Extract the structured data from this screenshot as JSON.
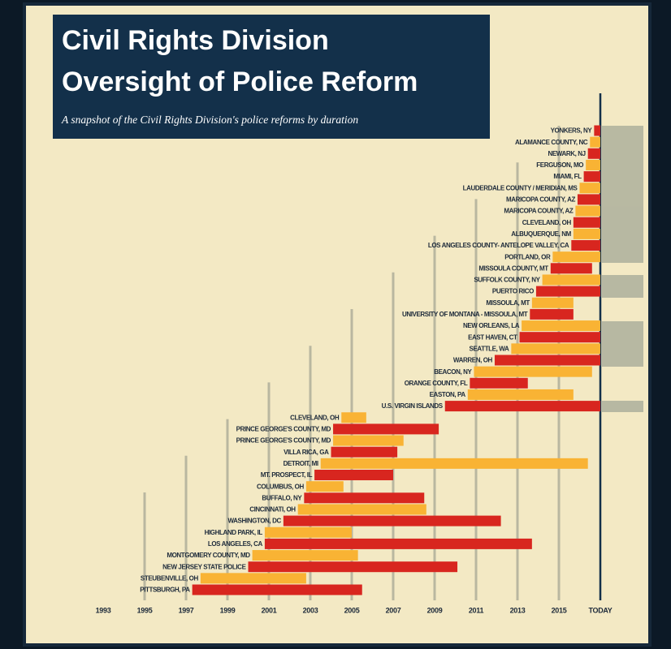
{
  "chart_data": {
    "type": "timeline",
    "title": "Civil Rights Division",
    "title_line2": "Oversight of Police Reform",
    "subtitle": "A snapshot of the Civil Rights Division's police reforms by duration",
    "categories": [
      "YONKERS, NY",
      "ALAMANCE COUNTY, NC",
      "NEWARK, NJ",
      "FERGUSON, MO",
      "MIAMI, FL",
      "LAUDERDALE COUNTY / MERIDIAN, MS",
      "MARICOPA COUNTY, AZ",
      "MARICOPA COUNTY, AZ",
      "CLEVELAND, OH",
      "ALBUQUERQUE, NM",
      "LOS ANGELES COUNTY- ANTELOPE VALLEY, CA",
      "PORTLAND, OR",
      "MISSOULA COUNTY, MT",
      "SUFFOLK COUNTY, NY",
      "PUERTO RICO",
      "MISSOULA, MT",
      "UNIVERSITY OF MONTANA - MISSOULA, MT",
      "NEW ORLEANS, LA",
      "EAST HAVEN, CT",
      "SEATTLE, WA",
      "WARREN, OH",
      "BEACON, NY",
      "ORANGE COUNTY, FL",
      "EASTON, PA",
      "U.S. VIRGIN ISLANDS",
      "CLEVELAND, OH",
      "PRINCE GEORGE'S COUNTY, MD",
      "PRINCE GEORGE'S COUNTY, MD",
      "VILLA RICA, GA",
      "DETROIT, MI",
      "MT. PROSPECT, IL",
      "COLUMBUS, OH",
      "BUFFALO, NY",
      "CINCINNATI, OH",
      "WASHINGTON, DC",
      "HIGHLAND PARK, IL",
      "LOS ANGELES, CA",
      "MONTGOMERY COUNTY, MD",
      "NEW JERSEY STATE POLICE",
      "STEUBENVILLE, OH",
      "PITTSBURGH, PA"
    ],
    "starts": [
      2016.7,
      2016.5,
      2016.4,
      2016.3,
      2016.2,
      2016.0,
      2015.9,
      2015.8,
      2015.7,
      2015.7,
      2015.6,
      2014.7,
      2014.6,
      2014.2,
      2013.9,
      2013.7,
      2013.6,
      2013.2,
      2013.1,
      2012.7,
      2011.9,
      2010.9,
      2010.7,
      2010.6,
      2009.5,
      2004.5,
      2004.1,
      2004.1,
      2004.0,
      2003.5,
      2003.2,
      2002.8,
      2002.7,
      2002.4,
      2001.7,
      2000.8,
      2000.8,
      2000.2,
      2000.0,
      1997.7,
      1997.3
    ],
    "ends": [
      2017,
      2017,
      2017,
      2017,
      2017,
      2017,
      2017,
      2017,
      2017,
      2017,
      2017,
      2017,
      2016.6,
      2017,
      2017,
      2015.7,
      2015.7,
      2017,
      2017,
      2017,
      2017,
      2016.6,
      2013.5,
      2015.7,
      2017,
      2005.7,
      2009.2,
      2007.5,
      2007.2,
      2016.4,
      2007.0,
      2004.6,
      2008.5,
      2008.6,
      2012.2,
      2005.0,
      2013.7,
      2005.3,
      2010.1,
      2002.8,
      2005.5
    ],
    "colors": [
      "#d8261f",
      "#f9b334"
    ],
    "xlim": [
      1991,
      2019
    ],
    "xticks": [
      1993,
      1995,
      1997,
      1999,
      2001,
      2003,
      2005,
      2007,
      2009,
      2011,
      2013,
      2015,
      {
        "value": 2017,
        "label": "TODAY"
      }
    ]
  }
}
